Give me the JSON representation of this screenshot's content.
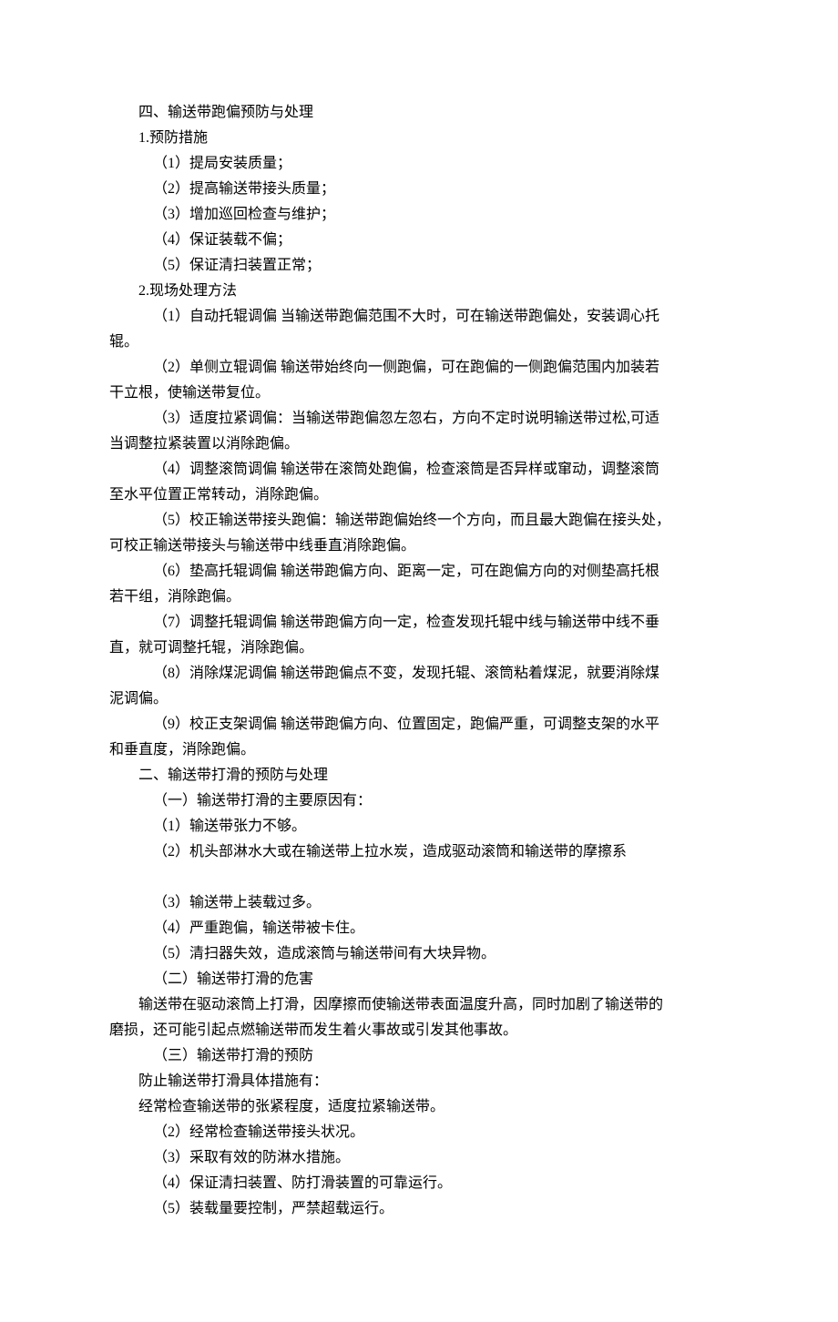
{
  "lines": [
    {
      "cls": "para",
      "text": "四、输送带跑偏预防与处理"
    },
    {
      "cls": "para",
      "text": "1.预防措施"
    },
    {
      "cls": "para-sub",
      "text": "（1）提局安装质量；"
    },
    {
      "cls": "para-sub",
      "text": "（2）提高输送带接头质量；"
    },
    {
      "cls": "para-sub",
      "text": "（3）增加巡回检查与维护；"
    },
    {
      "cls": "para-sub",
      "text": "（4）保证装载不偏；"
    },
    {
      "cls": "para-sub",
      "text": "（5）保证清扫装置正常；"
    },
    {
      "cls": "para",
      "text": "2.现场处理方法"
    },
    {
      "cls": "para-sub",
      "text": "（1）自动托辊调偏 当输送带跑偏范围不大时，可在输送带跑偏处，安装调心托"
    },
    {
      "cls": "para-noindent",
      "text": "辊。"
    },
    {
      "cls": "para-sub",
      "text": "（2）单侧立辊调偏 输送带始终向一侧跑偏，可在跑偏的一侧跑偏范围内加装若"
    },
    {
      "cls": "para-noindent",
      "text": "干立根，使输送带复位。"
    },
    {
      "cls": "para-sub",
      "text": "（3）适度拉紧调偏：当输送带跑偏忽左忽右，方向不定时说明输送带过松,可适"
    },
    {
      "cls": "para-noindent",
      "text": "当调整拉紧装置以消除跑偏。"
    },
    {
      "cls": "para-sub",
      "text": "（4）调整滚筒调偏 输送带在滚筒处跑偏，检查滚筒是否异样或窜动，调整滚筒"
    },
    {
      "cls": "para-noindent",
      "text": "至水平位置正常转动，消除跑偏。"
    },
    {
      "cls": "para-sub",
      "text": "（5）校正输送带接头跑偏：输送带跑偏始终一个方向，而且最大跑偏在接头处，"
    },
    {
      "cls": "para-noindent",
      "text": "可校正输送带接头与输送带中线垂直消除跑偏。"
    },
    {
      "cls": "para-sub",
      "text": "（6）垫高托辊调偏 输送带跑偏方向、距离一定，可在跑偏方向的对侧垫高托根"
    },
    {
      "cls": "para-noindent",
      "text": "若干组，消除跑偏。"
    },
    {
      "cls": "para-sub",
      "text": "（7）调整托辊调偏 输送带跑偏方向一定，检查发现托辊中线与输送带中线不垂"
    },
    {
      "cls": "para-noindent",
      "text": "直，就可调整托辊，消除跑偏。"
    },
    {
      "cls": "para-sub",
      "text": "（8）消除煤泥调偏 输送带跑偏点不变，发现托辊、滚筒粘着煤泥，就要消除煤"
    },
    {
      "cls": "para-noindent",
      "text": "泥调偏。"
    },
    {
      "cls": "para-sub",
      "text": "（9）校正支架调偏 输送带跑偏方向、位置固定，跑偏严重，可调整支架的水平"
    },
    {
      "cls": "para-noindent",
      "text": "和垂直度，消除跑偏。"
    },
    {
      "cls": "para",
      "text": "二、输送带打滑的预防与处理"
    },
    {
      "cls": "para-sub",
      "text": "（一）输送带打滑的主要原因有："
    },
    {
      "cls": "para-sub",
      "text": "（1）输送带张力不够。"
    },
    {
      "cls": "para-sub",
      "text": "（2）机头部淋水大或在输送带上拉水炭，造成驱动滚筒和输送带的摩擦系"
    },
    {
      "cls": "para-noindent",
      "text": " "
    },
    {
      "cls": "para-sub",
      "text": "（3）输送带上装载过多。"
    },
    {
      "cls": "para-sub",
      "text": "（4）严重跑偏，输送带被卡住。"
    },
    {
      "cls": "para-sub",
      "text": "（5）清扫器失效，造成滚筒与输送带间有大块异物。"
    },
    {
      "cls": "para-sub",
      "text": "（二）输送带打滑的危害"
    },
    {
      "cls": "para",
      "text": "输送带在驱动滚筒上打滑，因摩擦而使输送带表面温度升高，同时加剧了输送带的"
    },
    {
      "cls": "para-noindent",
      "text": "磨损，还可能引起点燃输送带而发生着火事故或引发其他事故。"
    },
    {
      "cls": "para-sub",
      "text": "（三）输送带打滑的预防"
    },
    {
      "cls": "para",
      "text": "防止输送带打滑具体措施有："
    },
    {
      "cls": "para",
      "text": "经常检查输送带的张紧程度，适度拉紧输送带。"
    },
    {
      "cls": "para-sub",
      "text": "（2）经常检查输送带接头状况。"
    },
    {
      "cls": "para-sub",
      "text": "（3）采取有效的防淋水措施。"
    },
    {
      "cls": "para-sub",
      "text": "（4）保证清扫装置、防打滑装置的可靠运行。"
    },
    {
      "cls": "para-sub",
      "text": "（5）装载量要控制，严禁超载运行。"
    }
  ]
}
